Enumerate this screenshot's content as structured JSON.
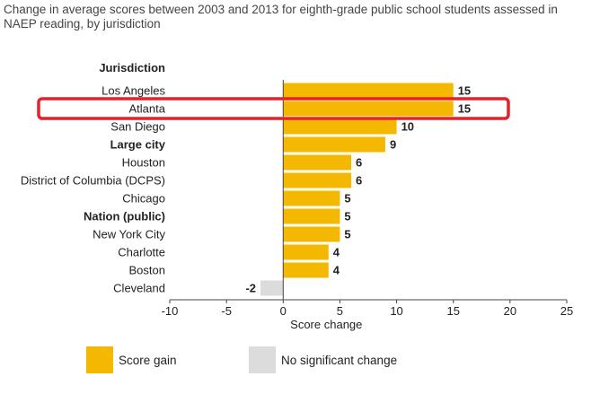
{
  "title": "Change in average scores between 2003 and 2013 for eighth-grade public school students assessed in NAEP reading, by jurisdiction",
  "colors": {
    "gain": "#f5b800",
    "no_change": "#dcdcdc",
    "highlight": "#e8202a",
    "axis": "#444444"
  },
  "legend": [
    {
      "label": "Score gain",
      "color": "#f5b800"
    },
    {
      "label": "No significant change",
      "color": "#dcdcdc"
    }
  ],
  "chart_data": {
    "type": "bar",
    "orientation": "horizontal",
    "title": "Change in average scores between 2003 and 2013 for eighth-grade public school students assessed in NAEP reading, by jurisdiction",
    "category_header": "Jurisdiction",
    "xlabel": "Score change",
    "xlim": [
      -10,
      25
    ],
    "xticks": [
      -10,
      -5,
      0,
      5,
      10,
      15,
      20,
      25
    ],
    "highlighted_category": "Atlanta",
    "categories": [
      "Los Angeles",
      "Atlanta",
      "San Diego",
      "Large city",
      "Houston",
      "District of Columbia (DCPS)",
      "Chicago",
      "Nation (public)",
      "New York City",
      "Charlotte",
      "Boston",
      "Cleveland"
    ],
    "values": [
      15,
      15,
      10,
      9,
      6,
      6,
      5,
      5,
      5,
      4,
      4,
      -2
    ],
    "value_labels": [
      "15",
      "15",
      "10",
      "9",
      "6",
      "6",
      "5",
      "5",
      "5",
      "4",
      "4",
      "-2"
    ],
    "bold_categories": [
      "Large city",
      "Nation (public)"
    ],
    "significant": [
      true,
      true,
      true,
      true,
      true,
      true,
      true,
      true,
      true,
      true,
      true,
      false
    ],
    "legend": [
      "Score gain",
      "No significant change"
    ]
  }
}
